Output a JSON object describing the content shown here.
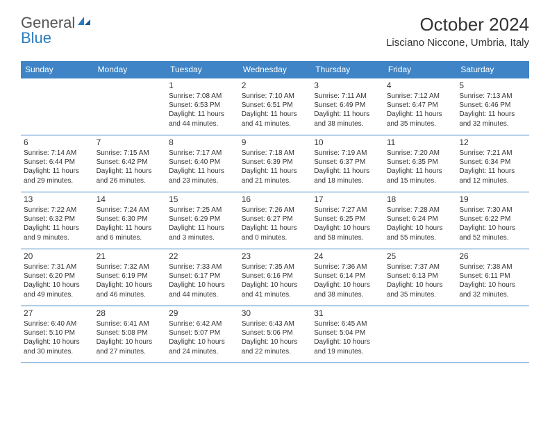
{
  "brand": {
    "part1": "General",
    "part2": "Blue"
  },
  "title": "October 2024",
  "location": "Lisciano Niccone, Umbria, Italy",
  "colors": {
    "header_bg": "#3e84c6",
    "header_text": "#ffffff",
    "border": "#3e84c6",
    "text": "#333333",
    "logo_gray": "#555555",
    "logo_blue": "#2b7bbf"
  },
  "day_headers": [
    "Sunday",
    "Monday",
    "Tuesday",
    "Wednesday",
    "Thursday",
    "Friday",
    "Saturday"
  ],
  "weeks": [
    [
      null,
      null,
      {
        "n": "1",
        "sr": "Sunrise: 7:08 AM",
        "ss": "Sunset: 6:53 PM",
        "dl": "Daylight: 11 hours and 44 minutes."
      },
      {
        "n": "2",
        "sr": "Sunrise: 7:10 AM",
        "ss": "Sunset: 6:51 PM",
        "dl": "Daylight: 11 hours and 41 minutes."
      },
      {
        "n": "3",
        "sr": "Sunrise: 7:11 AM",
        "ss": "Sunset: 6:49 PM",
        "dl": "Daylight: 11 hours and 38 minutes."
      },
      {
        "n": "4",
        "sr": "Sunrise: 7:12 AM",
        "ss": "Sunset: 6:47 PM",
        "dl": "Daylight: 11 hours and 35 minutes."
      },
      {
        "n": "5",
        "sr": "Sunrise: 7:13 AM",
        "ss": "Sunset: 6:46 PM",
        "dl": "Daylight: 11 hours and 32 minutes."
      }
    ],
    [
      {
        "n": "6",
        "sr": "Sunrise: 7:14 AM",
        "ss": "Sunset: 6:44 PM",
        "dl": "Daylight: 11 hours and 29 minutes."
      },
      {
        "n": "7",
        "sr": "Sunrise: 7:15 AM",
        "ss": "Sunset: 6:42 PM",
        "dl": "Daylight: 11 hours and 26 minutes."
      },
      {
        "n": "8",
        "sr": "Sunrise: 7:17 AM",
        "ss": "Sunset: 6:40 PM",
        "dl": "Daylight: 11 hours and 23 minutes."
      },
      {
        "n": "9",
        "sr": "Sunrise: 7:18 AM",
        "ss": "Sunset: 6:39 PM",
        "dl": "Daylight: 11 hours and 21 minutes."
      },
      {
        "n": "10",
        "sr": "Sunrise: 7:19 AM",
        "ss": "Sunset: 6:37 PM",
        "dl": "Daylight: 11 hours and 18 minutes."
      },
      {
        "n": "11",
        "sr": "Sunrise: 7:20 AM",
        "ss": "Sunset: 6:35 PM",
        "dl": "Daylight: 11 hours and 15 minutes."
      },
      {
        "n": "12",
        "sr": "Sunrise: 7:21 AM",
        "ss": "Sunset: 6:34 PM",
        "dl": "Daylight: 11 hours and 12 minutes."
      }
    ],
    [
      {
        "n": "13",
        "sr": "Sunrise: 7:22 AM",
        "ss": "Sunset: 6:32 PM",
        "dl": "Daylight: 11 hours and 9 minutes."
      },
      {
        "n": "14",
        "sr": "Sunrise: 7:24 AM",
        "ss": "Sunset: 6:30 PM",
        "dl": "Daylight: 11 hours and 6 minutes."
      },
      {
        "n": "15",
        "sr": "Sunrise: 7:25 AM",
        "ss": "Sunset: 6:29 PM",
        "dl": "Daylight: 11 hours and 3 minutes."
      },
      {
        "n": "16",
        "sr": "Sunrise: 7:26 AM",
        "ss": "Sunset: 6:27 PM",
        "dl": "Daylight: 11 hours and 0 minutes."
      },
      {
        "n": "17",
        "sr": "Sunrise: 7:27 AM",
        "ss": "Sunset: 6:25 PM",
        "dl": "Daylight: 10 hours and 58 minutes."
      },
      {
        "n": "18",
        "sr": "Sunrise: 7:28 AM",
        "ss": "Sunset: 6:24 PM",
        "dl": "Daylight: 10 hours and 55 minutes."
      },
      {
        "n": "19",
        "sr": "Sunrise: 7:30 AM",
        "ss": "Sunset: 6:22 PM",
        "dl": "Daylight: 10 hours and 52 minutes."
      }
    ],
    [
      {
        "n": "20",
        "sr": "Sunrise: 7:31 AM",
        "ss": "Sunset: 6:20 PM",
        "dl": "Daylight: 10 hours and 49 minutes."
      },
      {
        "n": "21",
        "sr": "Sunrise: 7:32 AM",
        "ss": "Sunset: 6:19 PM",
        "dl": "Daylight: 10 hours and 46 minutes."
      },
      {
        "n": "22",
        "sr": "Sunrise: 7:33 AM",
        "ss": "Sunset: 6:17 PM",
        "dl": "Daylight: 10 hours and 44 minutes."
      },
      {
        "n": "23",
        "sr": "Sunrise: 7:35 AM",
        "ss": "Sunset: 6:16 PM",
        "dl": "Daylight: 10 hours and 41 minutes."
      },
      {
        "n": "24",
        "sr": "Sunrise: 7:36 AM",
        "ss": "Sunset: 6:14 PM",
        "dl": "Daylight: 10 hours and 38 minutes."
      },
      {
        "n": "25",
        "sr": "Sunrise: 7:37 AM",
        "ss": "Sunset: 6:13 PM",
        "dl": "Daylight: 10 hours and 35 minutes."
      },
      {
        "n": "26",
        "sr": "Sunrise: 7:38 AM",
        "ss": "Sunset: 6:11 PM",
        "dl": "Daylight: 10 hours and 32 minutes."
      }
    ],
    [
      {
        "n": "27",
        "sr": "Sunrise: 6:40 AM",
        "ss": "Sunset: 5:10 PM",
        "dl": "Daylight: 10 hours and 30 minutes."
      },
      {
        "n": "28",
        "sr": "Sunrise: 6:41 AM",
        "ss": "Sunset: 5:08 PM",
        "dl": "Daylight: 10 hours and 27 minutes."
      },
      {
        "n": "29",
        "sr": "Sunrise: 6:42 AM",
        "ss": "Sunset: 5:07 PM",
        "dl": "Daylight: 10 hours and 24 minutes."
      },
      {
        "n": "30",
        "sr": "Sunrise: 6:43 AM",
        "ss": "Sunset: 5:06 PM",
        "dl": "Daylight: 10 hours and 22 minutes."
      },
      {
        "n": "31",
        "sr": "Sunrise: 6:45 AM",
        "ss": "Sunset: 5:04 PM",
        "dl": "Daylight: 10 hours and 19 minutes."
      },
      null,
      null
    ]
  ]
}
